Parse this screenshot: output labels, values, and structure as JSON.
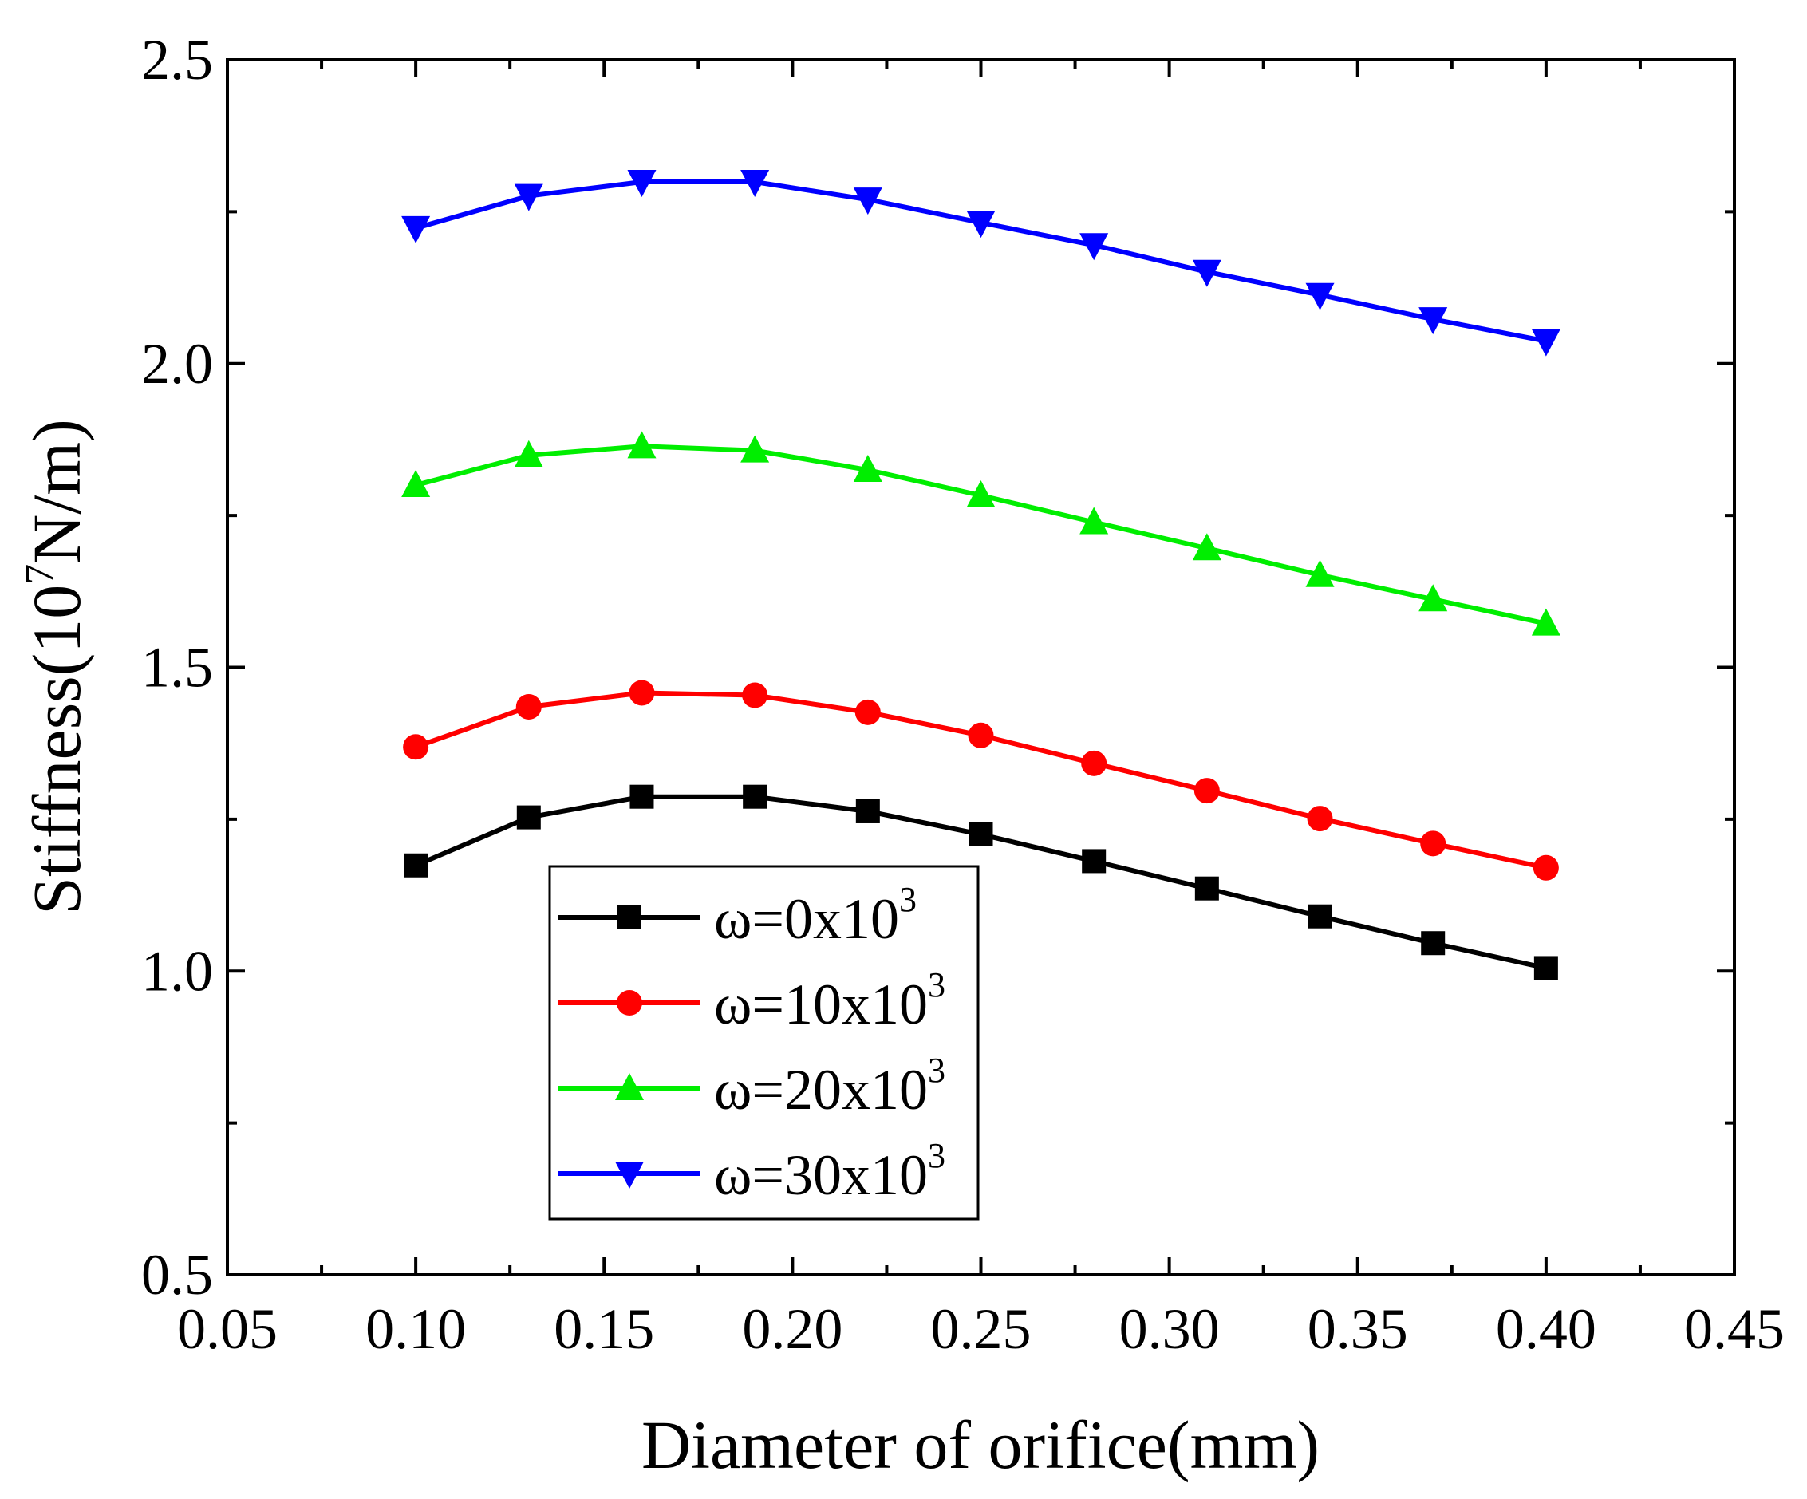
{
  "chart_data": {
    "type": "line",
    "title": "",
    "xlabel": "Diameter of orifice(mm)",
    "ylabel_parts": {
      "prefix": "Stiffness(10",
      "sup": "7",
      "suffix": "N/m)"
    },
    "xlim": [
      0.05,
      0.45
    ],
    "ylim": [
      0.5,
      2.5
    ],
    "xticks": [
      "0.05",
      "0.10",
      "0.15",
      "0.20",
      "0.25",
      "0.30",
      "0.35",
      "0.40",
      "0.45"
    ],
    "yticks": [
      "0.5",
      "1.0",
      "1.5",
      "2.0",
      "2.5"
    ],
    "grid": false,
    "legend_position": "lower-left",
    "x": [
      0.1,
      0.13,
      0.16,
      0.19,
      0.22,
      0.25,
      0.28,
      0.31,
      0.34,
      0.37,
      0.4
    ],
    "series": [
      {
        "name": "ω=0x10",
        "sup": "3",
        "color": "#000000",
        "marker": "square",
        "values": [
          1.174,
          1.253,
          1.287,
          1.287,
          1.263,
          1.225,
          1.181,
          1.136,
          1.09,
          1.046,
          1.005
        ]
      },
      {
        "name": "ω=10x10",
        "sup": "3",
        "color": "#ff0000",
        "marker": "circle",
        "values": [
          1.369,
          1.435,
          1.458,
          1.454,
          1.426,
          1.388,
          1.342,
          1.297,
          1.251,
          1.21,
          1.17
        ]
      },
      {
        "name": "ω=20x10",
        "sup": "3",
        "color": "#00ee00",
        "marker": "triangle-up",
        "values": [
          1.8,
          1.849,
          1.864,
          1.857,
          1.825,
          1.783,
          1.739,
          1.696,
          1.652,
          1.612,
          1.572
        ]
      },
      {
        "name": "ω=30x10",
        "sup": "3",
        "color": "#0000ff",
        "marker": "triangle-down",
        "values": [
          2.223,
          2.276,
          2.299,
          2.299,
          2.27,
          2.232,
          2.195,
          2.151,
          2.113,
          2.073,
          2.037
        ]
      }
    ]
  }
}
